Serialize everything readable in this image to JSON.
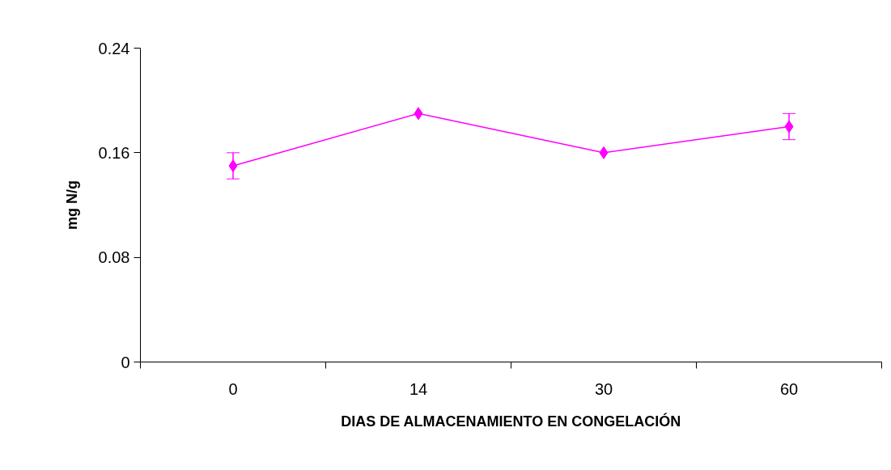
{
  "chart_data": {
    "type": "line",
    "xlabel": "DIAS DE ALMACENAMIENTO EN CONGELACIÓN",
    "ylabel": "mg N/g",
    "categories": [
      "0",
      "14",
      "30",
      "60"
    ],
    "series": [
      {
        "color": "#ff00ff",
        "values": [
          0.15,
          0.19,
          0.16,
          0.18
        ],
        "errors": [
          0.01,
          null,
          null,
          0.01
        ]
      }
    ],
    "ylim": [
      0,
      0.24
    ],
    "yticks": [
      0,
      0.08,
      0.16,
      0.24
    ],
    "grid": false,
    "marker": "diamond",
    "line_style": "solid"
  }
}
